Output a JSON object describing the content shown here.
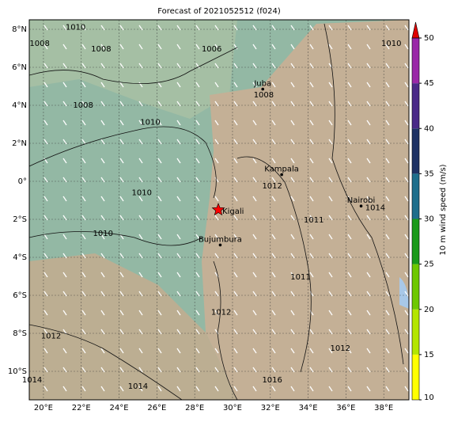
{
  "title": "Forecast of 2021052512 (f024)",
  "map": {
    "lonlim": [
      19.25,
      39.33
    ],
    "latlim": [
      -11.5,
      8.5
    ],
    "lon_ticks": [
      {
        "value": 20,
        "label": "20°E"
      },
      {
        "value": 22,
        "label": "22°E"
      },
      {
        "value": 24,
        "label": "24°E"
      },
      {
        "value": 26,
        "label": "26°E"
      },
      {
        "value": 28,
        "label": "28°E"
      },
      {
        "value": 30,
        "label": "30°E"
      },
      {
        "value": 32,
        "label": "32°E"
      },
      {
        "value": 34,
        "label": "34°E"
      },
      {
        "value": 36,
        "label": "36°E"
      },
      {
        "value": 38,
        "label": "38°E"
      }
    ],
    "lat_ticks": [
      {
        "value": 8,
        "label": "8°N"
      },
      {
        "value": 6,
        "label": "6°N"
      },
      {
        "value": 4,
        "label": "4°N"
      },
      {
        "value": 2,
        "label": "2°N"
      },
      {
        "value": 0,
        "label": "0°"
      },
      {
        "value": -2,
        "label": "2°S"
      },
      {
        "value": -4,
        "label": "4°S"
      },
      {
        "value": -6,
        "label": "6°S"
      },
      {
        "value": -8,
        "label": "8°S"
      },
      {
        "value": -10,
        "label": "10°S"
      }
    ],
    "cities": [
      {
        "name": "Juba",
        "lon": 31.6,
        "lat": 4.85
      },
      {
        "name": "Kampala",
        "lon": 32.6,
        "lat": 0.35
      },
      {
        "name": "Nairobi",
        "lon": 36.8,
        "lat": -1.3
      },
      {
        "name": "Bujumbura",
        "lon": 29.35,
        "lat": -3.35
      }
    ],
    "marker": {
      "name": "Kigali",
      "lon": 29.25,
      "lat": -1.5,
      "color": "#ff0000"
    },
    "isobar_labels": [
      {
        "text": "1008",
        "lon": 19.8,
        "lat": 7.25
      },
      {
        "text": "1010",
        "lon": 21.7,
        "lat": 8.1
      },
      {
        "text": "1008",
        "lon": 23.05,
        "lat": 6.95
      },
      {
        "text": "1006",
        "lon": 28.9,
        "lat": 6.95
      },
      {
        "text": "1008",
        "lon": 22.1,
        "lat": 4.0
      },
      {
        "text": "1010",
        "lon": 25.65,
        "lat": 3.1
      },
      {
        "text": "1010",
        "lon": 25.2,
        "lat": -0.6
      },
      {
        "text": "1010",
        "lon": 23.15,
        "lat": -2.75
      },
      {
        "text": "1008",
        "lon": 31.65,
        "lat": 4.55
      },
      {
        "text": "1012",
        "lon": 20.4,
        "lat": -8.15
      },
      {
        "text": "1014",
        "lon": 19.4,
        "lat": -10.45
      },
      {
        "text": "1014",
        "lon": 25.0,
        "lat": -10.8
      },
      {
        "text": "1016",
        "lon": 32.1,
        "lat": -10.45
      },
      {
        "text": "1011",
        "lon": 33.6,
        "lat": -5.05
      },
      {
        "text": "1011",
        "lon": 34.3,
        "lat": -2.05
      },
      {
        "text": "1012",
        "lon": 32.1,
        "lat": -0.25
      },
      {
        "text": "1010",
        "lon": 38.4,
        "lat": 7.25
      },
      {
        "text": "1014",
        "lon": 37.55,
        "lat": -1.4
      },
      {
        "text": "1012",
        "lon": 35.7,
        "lat": -8.8
      },
      {
        "text": "1012",
        "lon": 29.4,
        "lat": -6.9
      }
    ]
  },
  "colorbar": {
    "label": "10 m wind speed (m/s)",
    "lim": [
      10,
      50
    ],
    "ticks": [
      10,
      15,
      20,
      25,
      30,
      35,
      40,
      45,
      50
    ],
    "colors": [
      "#ffff00",
      "#b4e600",
      "#6ec800",
      "#1a9a1a",
      "#1e6e8c",
      "#1e3264",
      "#4a2a88",
      "#9a28a8"
    ],
    "extend_color": "#e00000"
  }
}
